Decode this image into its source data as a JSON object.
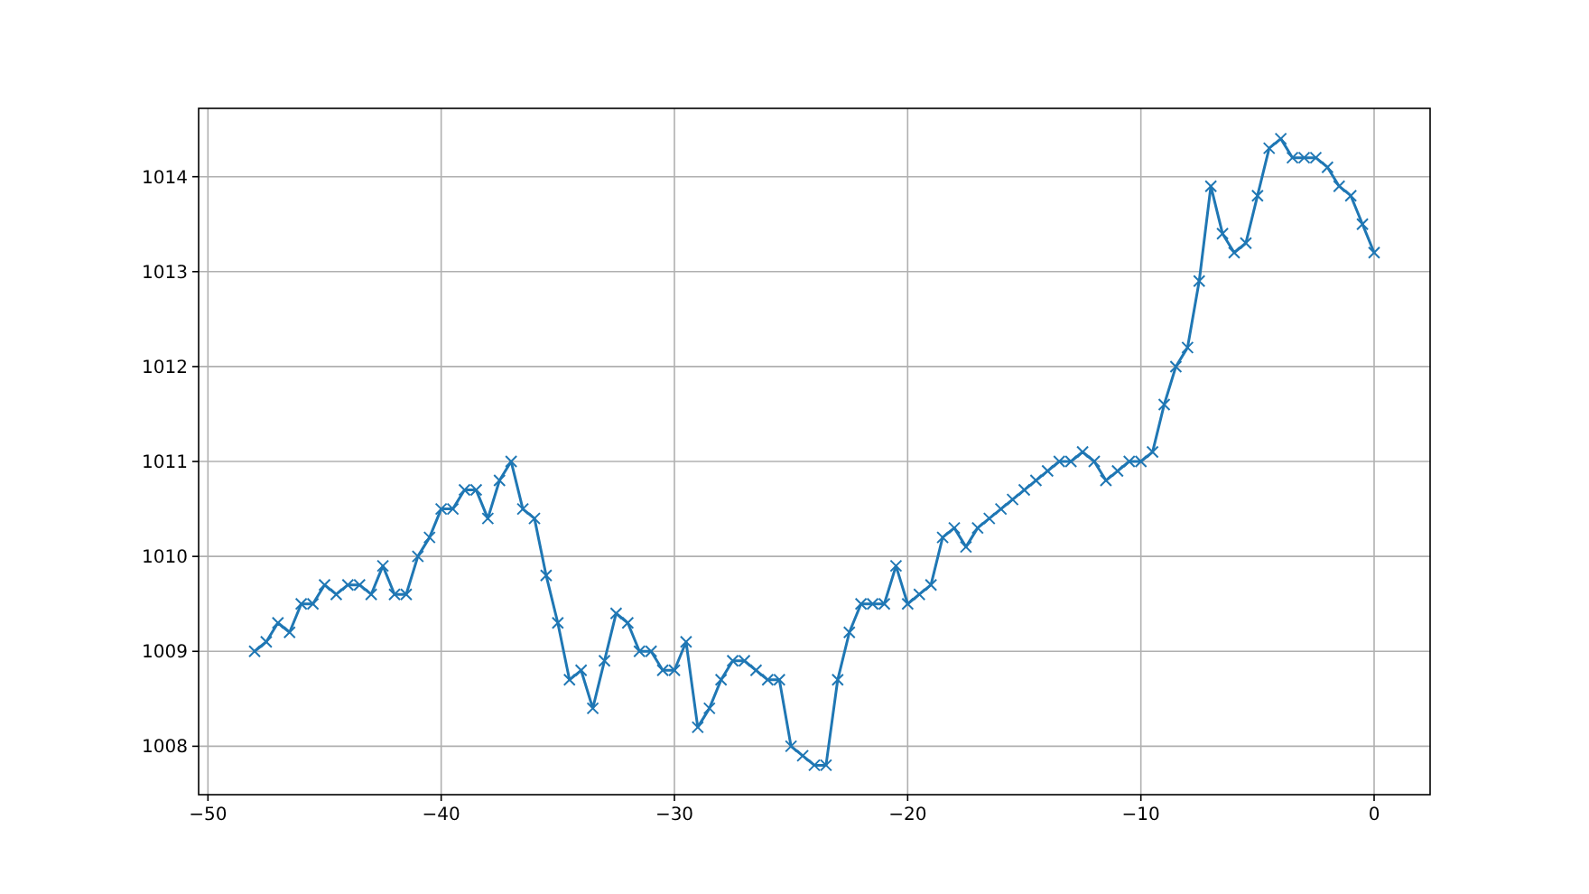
{
  "chart_data": {
    "type": "line",
    "x": [
      -48,
      -47.5,
      -47,
      -46.5,
      -46,
      -45.5,
      -45,
      -44.5,
      -44,
      -43.5,
      -43,
      -42.5,
      -42,
      -41.5,
      -41,
      -40.5,
      -40,
      -39.5,
      -39,
      -38.5,
      -38,
      -37.5,
      -37,
      -36.5,
      -36,
      -35.5,
      -35,
      -34.5,
      -34,
      -33.5,
      -33,
      -32.5,
      -32,
      -31.5,
      -31,
      -30.5,
      -30,
      -29.5,
      -29,
      -28.5,
      -28,
      -27.5,
      -27,
      -26.5,
      -26,
      -25.5,
      -25,
      -24.5,
      -24,
      -23.5,
      -23,
      -22.5,
      -22,
      -21.5,
      -21,
      -20.5,
      -20,
      -19.5,
      -19,
      -18.5,
      -18,
      -17.5,
      -17,
      -16.5,
      -16,
      -15.5,
      -15,
      -14.5,
      -14,
      -13.5,
      -13,
      -12.5,
      -12,
      -11.5,
      -11,
      -10.5,
      -10,
      -9.5,
      -9,
      -8.5,
      -8,
      -7.5,
      -7,
      -6.5,
      -6,
      -5.5,
      -5,
      -4.5,
      -4,
      -3.5,
      -3,
      -2.5,
      -2,
      -1.5,
      -1,
      -0.5,
      0
    ],
    "series": [
      {
        "color": "#1f77b4",
        "values": [
          1009.0,
          1009.1,
          1009.3,
          1009.2,
          1009.5,
          1009.5,
          1009.7,
          1009.6,
          1009.7,
          1009.7,
          1009.6,
          1009.9,
          1009.6,
          1009.6,
          1010.0,
          1010.2,
          1010.5,
          1010.5,
          1010.7,
          1010.7,
          1010.4,
          1010.8,
          1011.0,
          1010.5,
          1010.4,
          1009.8,
          1009.3,
          1008.7,
          1008.8,
          1008.4,
          1008.9,
          1009.4,
          1009.3,
          1009.0,
          1009.0,
          1008.8,
          1008.8,
          1009.1,
          1008.2,
          1008.4,
          1008.7,
          1008.9,
          1008.9,
          1008.8,
          1008.7,
          1008.7,
          1008.0,
          1007.9,
          1007.8,
          1007.8,
          1008.7,
          1009.2,
          1009.5,
          1009.5,
          1009.5,
          1009.9,
          1009.5,
          1009.6,
          1009.7,
          1010.2,
          1010.3,
          1010.1,
          1010.3,
          1010.4,
          1010.5,
          1010.6,
          1010.7,
          1010.8,
          1010.9,
          1011.0,
          1011.0,
          1011.1,
          1011.0,
          1010.8,
          1010.9,
          1011.0,
          1011.0,
          1011.1,
          1011.6,
          1012.0,
          1012.2,
          1012.9,
          1013.9,
          1013.4,
          1013.2,
          1013.3,
          1013.8,
          1014.3,
          1014.4,
          1014.2,
          1014.2,
          1014.2,
          1014.1,
          1013.9,
          1013.8,
          1013.5,
          1013.2
        ]
      }
    ],
    "xlim": [
      -50.4,
      2.4
    ],
    "xticks": [
      -50,
      -40,
      -30,
      -20,
      -10,
      0
    ],
    "ylim": [
      1007.49,
      1014.72
    ],
    "yticks": [
      1008,
      1009,
      1010,
      1011,
      1012,
      1013,
      1014
    ],
    "grid": true,
    "marker": "cross",
    "line_style": "solid"
  }
}
